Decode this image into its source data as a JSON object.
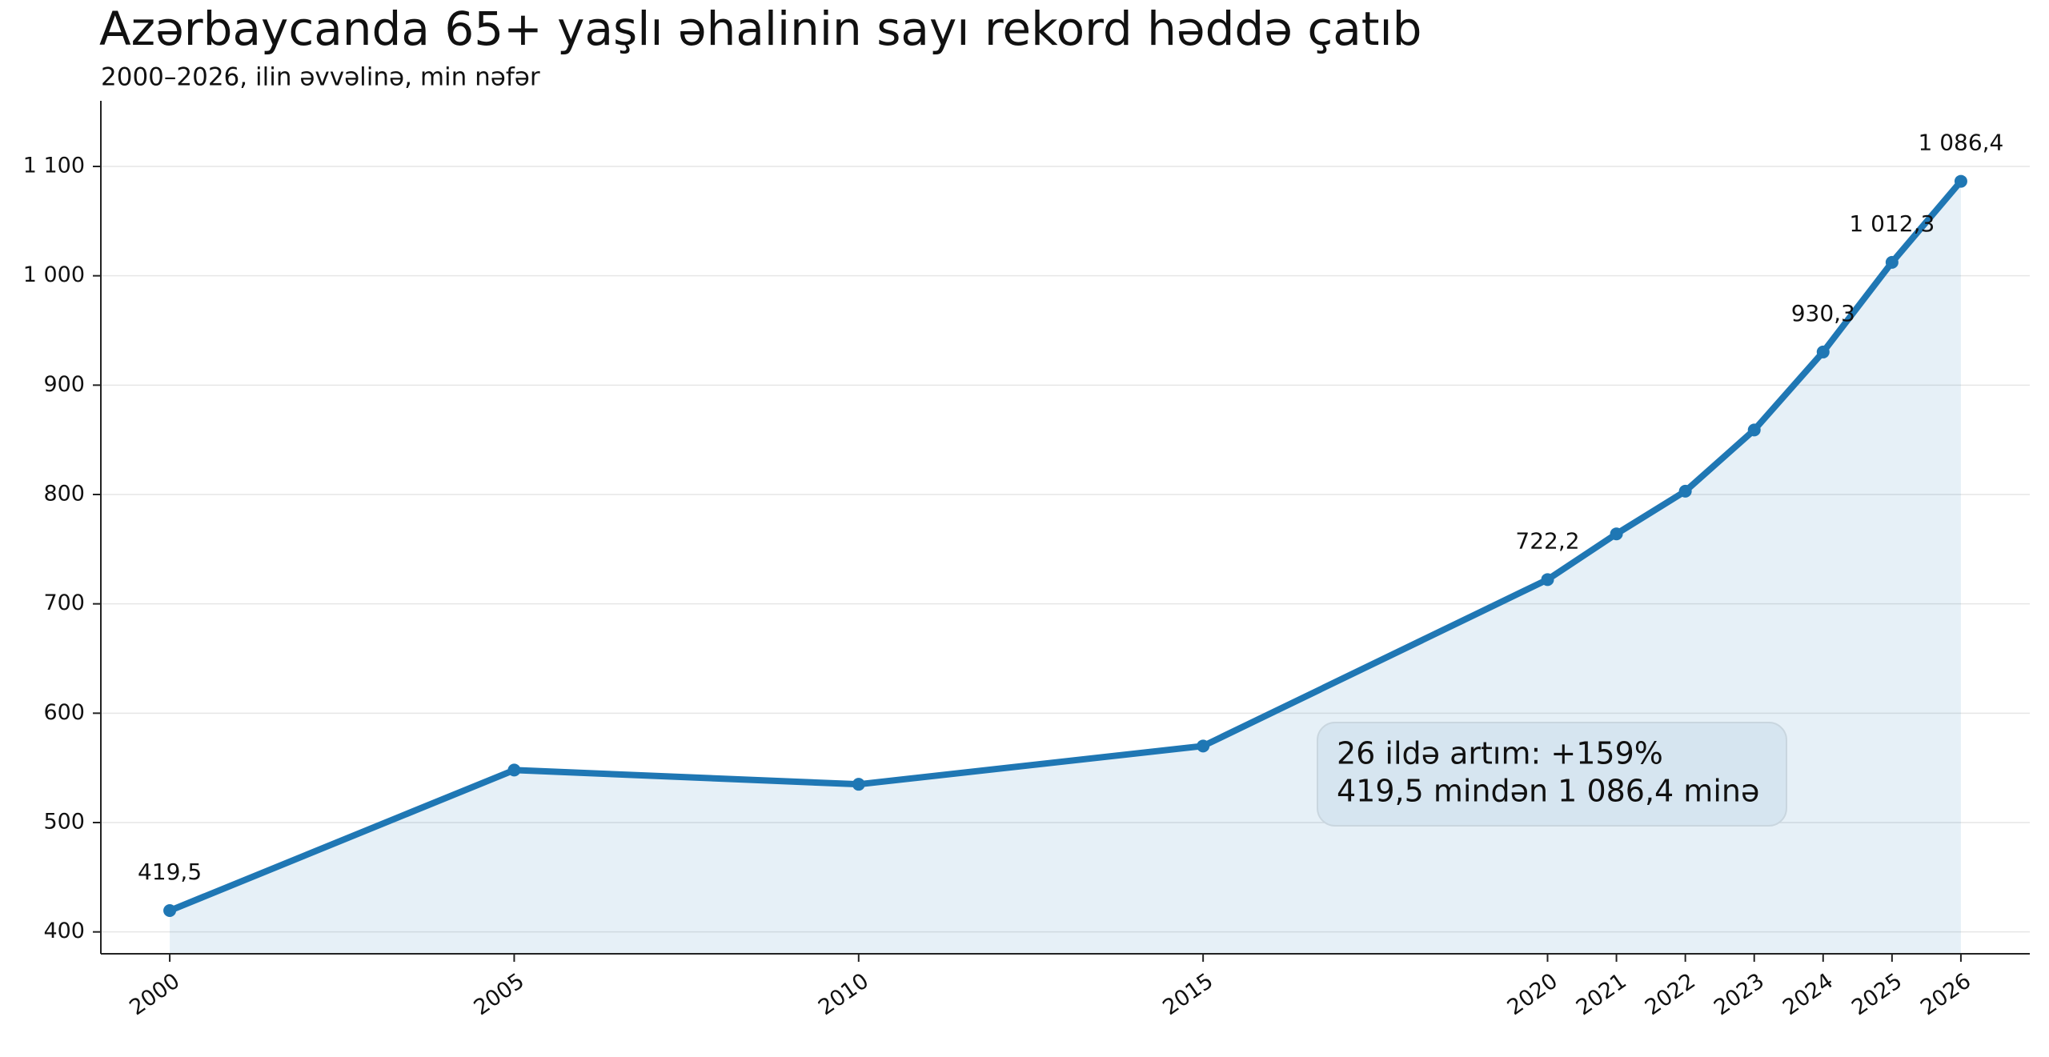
{
  "chart_data": {
    "type": "line",
    "title": "Azərbaycanda 65+ yaşlı əhalinin sayı rekord həddə çatıb",
    "subtitle": "2000–2026, ilin əvvəlinə, min nəfər",
    "x": [
      2000,
      2005,
      2010,
      2015,
      2020,
      2021,
      2022,
      2023,
      2024,
      2025,
      2026
    ],
    "values": [
      419.5,
      548,
      535,
      570,
      722.2,
      764,
      803,
      859,
      930.3,
      1012.3,
      1086.4
    ],
    "value_labels": [
      "419,5",
      null,
      null,
      null,
      "722,2",
      null,
      null,
      null,
      "930,3",
      "1 012,3",
      "1 086,4"
    ],
    "color": "#1f77b4",
    "area": true,
    "xlim": [
      1999,
      2027
    ],
    "xticks": [
      2000,
      2005,
      2010,
      2015,
      2020,
      2021,
      2022,
      2023,
      2024,
      2025,
      2026
    ],
    "ylim": [
      380,
      1160
    ],
    "yticks": [
      400,
      500,
      600,
      700,
      800,
      900,
      {
        "value": 1000,
        "label": "1 000"
      },
      {
        "value": 1100,
        "label": "1 100"
      }
    ],
    "grid": true,
    "annotation": [
      "26 ildə artım: +159%",
      "419,5 mindən 1 086,4 minə"
    ]
  }
}
